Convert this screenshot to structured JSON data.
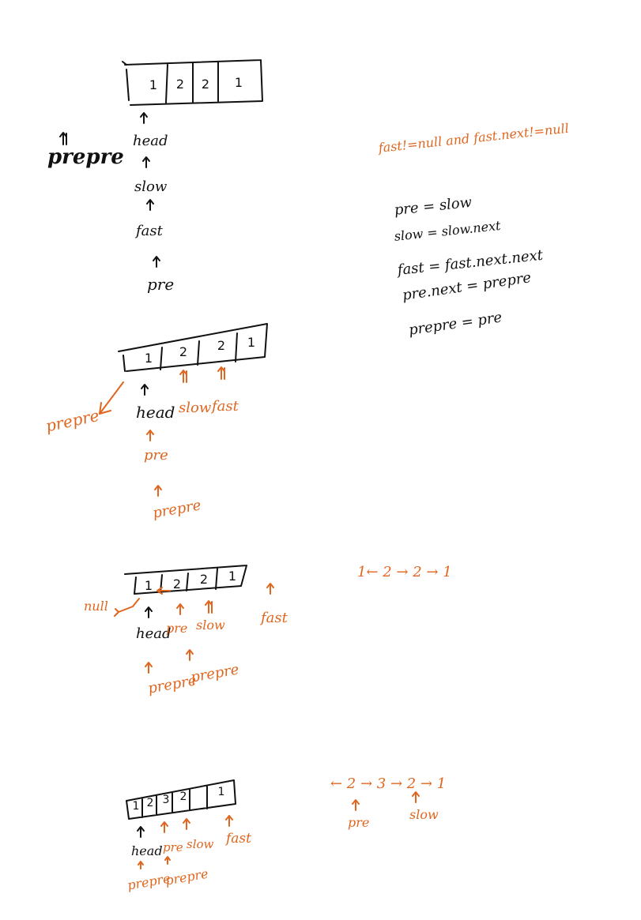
{
  "colors": {
    "ink": "#111111",
    "accent": "#e0661f"
  },
  "conditions": {
    "loop_condition": "fast!=null and fast.next!=null"
  },
  "steps": [
    "pre = slow",
    "slow = slow.next",
    "fast = fast.next.next",
    "pre.next = prepre",
    "prepre = pre"
  ],
  "diagram1": {
    "cells": [
      "1",
      "2",
      "2",
      "1"
    ],
    "labels": {
      "prepre": "prepre",
      "head": "head",
      "slow": "slow",
      "fast": "fast",
      "pre": "pre"
    }
  },
  "diagram2": {
    "cells": [
      "1",
      "2",
      "2",
      "1"
    ],
    "labels": {
      "prepre": "prepre",
      "head": "head",
      "slow": "slow",
      "fast": "fast",
      "pre": "pre",
      "prepre2": "prepre"
    }
  },
  "diagram3": {
    "null_label": "null",
    "cells": [
      "1",
      "2",
      "2",
      "1"
    ],
    "labels": {
      "head": "head",
      "pre": "pre",
      "slow": "slow",
      "fast": "fast",
      "prepre_a": "prepre",
      "prepre_b": "prepre"
    },
    "result": "1← 2 → 2 → 1"
  },
  "diagram4": {
    "cells": [
      "1",
      "2",
      "3",
      "2",
      "1"
    ],
    "labels": {
      "head": "head",
      "pre": "pre",
      "slow": "slow",
      "fast": "fast",
      "prepre_a": "prepre",
      "prepre_b": "prepre"
    },
    "result": "← 2 → 3 → 2 → 1",
    "result_pre": "pre",
    "result_slow": "slow"
  }
}
